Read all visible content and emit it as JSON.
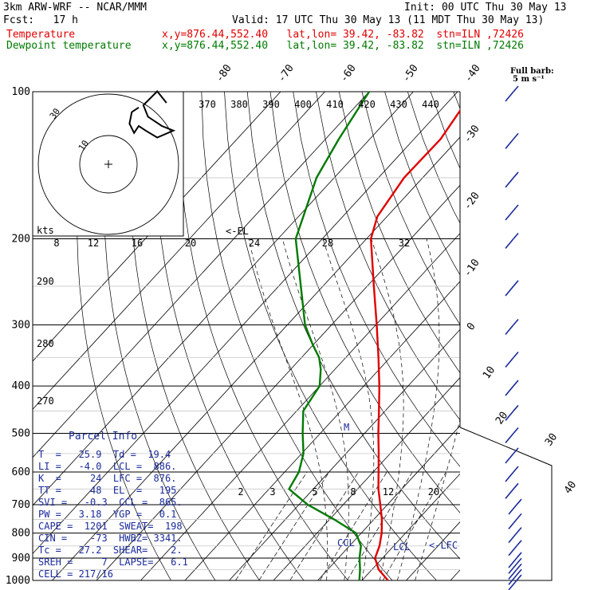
{
  "header": {
    "model": "3km ARW-WRF -- NCAR/MMM",
    "init": "Init: 00 UTC Thu 30 May 13",
    "fcst": "Fcst:   17 h",
    "valid": "Valid: 17 UTC Thu 30 May 13 (11 MDT Thu 30 May 13)",
    "temp_label": "Temperature",
    "temp_info": "x,y=876.44,552.40   lat,lon= 39.42, -83.82  stn=ILN ,72426",
    "dew_label": "Dewpoint temperature",
    "dew_info": "x,y=876.44,552.40   lat,lon= 39.42, -83.82  stn=ILN ,72426"
  },
  "barb_key": {
    "line1": "Full barb:",
    "line2": "5 m s⁻¹"
  },
  "parcel_info": {
    "title": "Parcel Info",
    "rows": [
      "T  =   25.9  Td =  19.4",
      "LI =   -4.0  LCL =  886.",
      "K  =     24  LFC =  876.",
      "TT =     48  EL  =   195",
      "SVI =   -0.3  CCL =  865.",
      "PW =   3.18  YGP =   0.1",
      "CAPE =  1201  SWEAT=  198",
      "CIN =    -73  HWBZ= 3341.",
      "Tc =   27.2  SHEAR=    2.",
      "SREH =     7  LAPSE=   6.1",
      "CELL = 217/16"
    ]
  },
  "hodograph": {
    "unit_label": "kts",
    "rings": [
      10,
      30
    ],
    "points": [
      [
        0,
        28
      ],
      [
        -3,
        26
      ],
      [
        -4,
        21
      ],
      [
        -2,
        17
      ],
      [
        0,
        20
      ],
      [
        3,
        18
      ],
      [
        8,
        15
      ],
      [
        15,
        18
      ],
      [
        10,
        20
      ],
      [
        4,
        24
      ],
      [
        2,
        29
      ],
      [
        8,
        35
      ],
      [
        12,
        30
      ]
    ]
  },
  "chart_data": {
    "type": "line",
    "title": "",
    "xlabel": "",
    "ylabel": "",
    "pressure_ticks": [
      1000,
      900,
      800,
      700,
      600,
      500,
      400,
      300,
      200,
      100
    ],
    "isotherm_labels_top": [
      "-80",
      "-70",
      "-60",
      "-50",
      "-40"
    ],
    "isotherm_labels_right": [
      "-30",
      "-20",
      "-10",
      "0",
      "10",
      "20",
      "30",
      "40"
    ],
    "theta_labels": [
      "370",
      "380",
      "390",
      "400",
      "410",
      "420",
      "430",
      "440"
    ],
    "theta_labels_mid": [
      "290",
      "280",
      "270"
    ],
    "mixing_ratio_labels": [
      "2",
      "3",
      "5",
      "8",
      "12",
      "20"
    ],
    "hodo_speed_labels": [
      "8",
      "12",
      "16",
      "20",
      "24",
      "28",
      "32"
    ],
    "annotations": {
      "el": "<-EL",
      "ccl": "CCL",
      "lcl": "LCL",
      "lfc": "<-LFC",
      "m": "M"
    },
    "series": [
      {
        "name": "Temperature",
        "color": "#e00000",
        "points": [
          [
            1000,
            25.9
          ],
          [
            950,
            21.5
          ],
          [
            900,
            18.3
          ],
          [
            850,
            16.8
          ],
          [
            800,
            14.6
          ],
          [
            750,
            11.8
          ],
          [
            700,
            8.4
          ],
          [
            650,
            4.7
          ],
          [
            600,
            1.2
          ],
          [
            550,
            -2.6
          ],
          [
            500,
            -6.9
          ],
          [
            450,
            -11.4
          ],
          [
            400,
            -16.5
          ],
          [
            350,
            -22.6
          ],
          [
            300,
            -29.8
          ],
          [
            250,
            -38.5
          ],
          [
            200,
            -49.0
          ],
          [
            180,
            -52.2
          ],
          [
            150,
            -54.2
          ],
          [
            125,
            -54.0
          ],
          [
            100,
            -56.5
          ]
        ]
      },
      {
        "name": "Dewpoint temperature",
        "color": "#007a00",
        "points": [
          [
            1000,
            19.4
          ],
          [
            950,
            17.3
          ],
          [
            900,
            14.8
          ],
          [
            850,
            12.6
          ],
          [
            800,
            8.8
          ],
          [
            750,
            1.0
          ],
          [
            700,
            -8.0
          ],
          [
            650,
            -15.5
          ],
          [
            600,
            -16.8
          ],
          [
            550,
            -19.6
          ],
          [
            500,
            -24.0
          ],
          [
            450,
            -28.5
          ],
          [
            400,
            -30.0
          ],
          [
            370,
            -33.2
          ],
          [
            350,
            -36.0
          ],
          [
            330,
            -40.0
          ],
          [
            300,
            -46.0
          ],
          [
            250,
            -55.0
          ],
          [
            200,
            -66.0
          ],
          [
            150,
            -74.0
          ],
          [
            125,
            -77.0
          ],
          [
            100,
            -80.0
          ]
        ]
      }
    ],
    "wind_barbs_hpa": [
      1000,
      975,
      950,
      925,
      900,
      850,
      800,
      750,
      700,
      650,
      600,
      550,
      500,
      450,
      400,
      350,
      300,
      250,
      200,
      175,
      150,
      125,
      100
    ]
  }
}
